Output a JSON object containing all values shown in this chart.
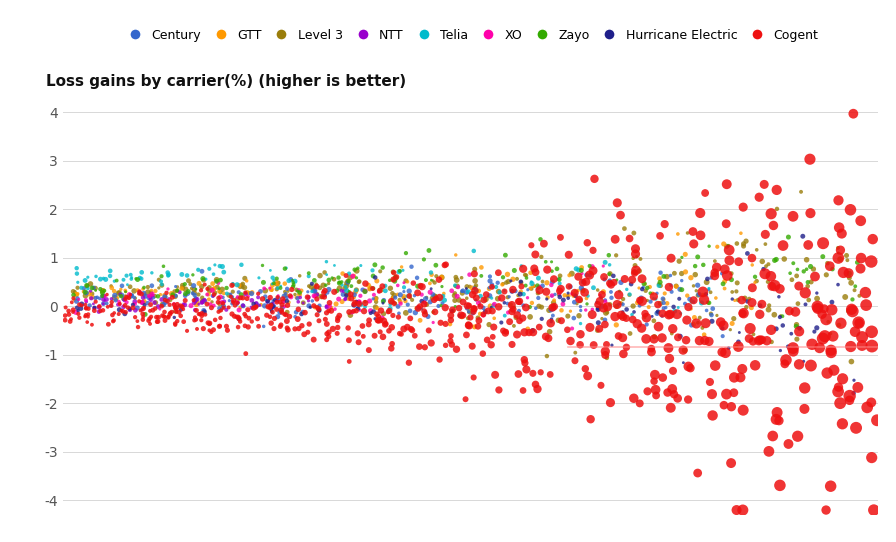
{
  "title": "Loss gains by carrier(%) (higher is better)",
  "carriers": [
    "Century",
    "GTT",
    "Level 3",
    "NTT",
    "Telia",
    "XO",
    "Zayo",
    "Hurricane Electric",
    "Cogent"
  ],
  "colors": {
    "Century": "#3366CC",
    "GTT": "#FF9900",
    "Level 3": "#9A7D0A",
    "NTT": "#9900CC",
    "Telia": "#00BBCC",
    "XO": "#FF00AA",
    "Zayo": "#33AA00",
    "Hurricane Electric": "#1F1F8A",
    "Cogent": "#EE1111"
  },
  "ylim": [
    -4.3,
    4.3
  ],
  "yticks": [
    -4,
    -3,
    -2,
    -1,
    0,
    1,
    2,
    3,
    4
  ],
  "n_points": {
    "Century": 200,
    "GTT": 160,
    "Level 3": 320,
    "NTT": 70,
    "Telia": 120,
    "XO": 90,
    "Zayo": 140,
    "Hurricane Electric": 110,
    "Cogent": 700
  },
  "x_range": [
    0,
    800
  ],
  "background_color": "#ffffff",
  "grid_color": "#d8d8d8"
}
